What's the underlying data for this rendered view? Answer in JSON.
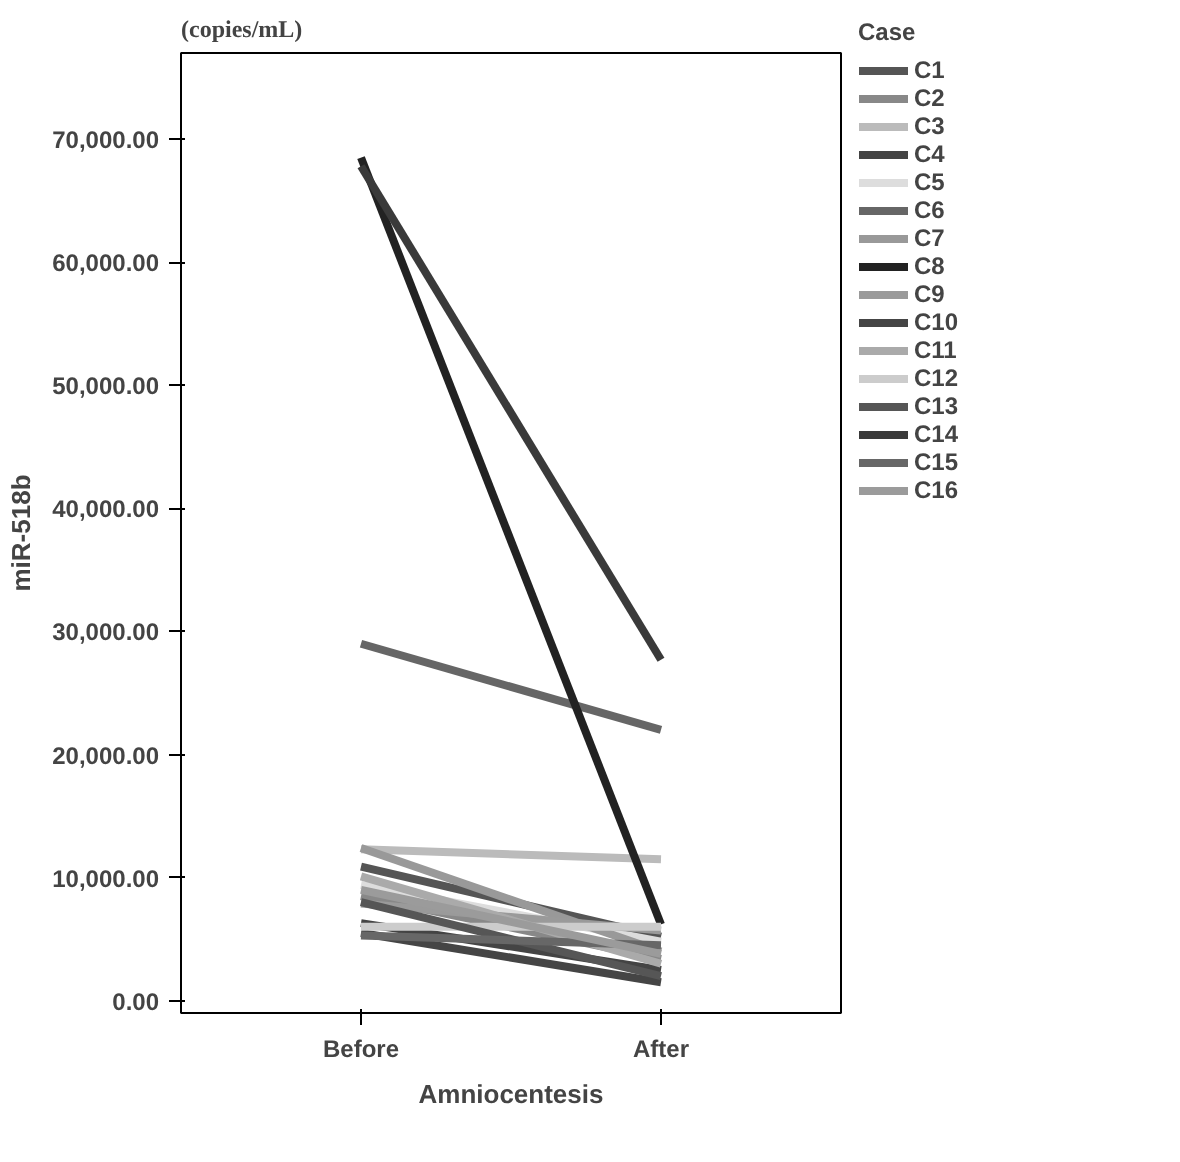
{
  "chart_data": {
    "type": "line",
    "xlabel": "Amniocentesis",
    "ylabel": "miR-518b",
    "legend_title": "Case",
    "legend": "right",
    "grid": false,
    "marker": "none",
    "line_style": "solid",
    "annotations": [
      "(copies/mL)"
    ],
    "categories": [
      "Before",
      "After"
    ],
    "ylim": [
      -1000,
      77000
    ],
    "yticks": [
      {
        "value": 0,
        "label": "0.00"
      },
      {
        "value": 10000,
        "label": "10,000.00"
      },
      {
        "value": 20000,
        "label": "20,000.00"
      },
      {
        "value": 30000,
        "label": "30,000.00"
      },
      {
        "value": 40000,
        "label": "40,000.00"
      },
      {
        "value": 50000,
        "label": "50,000.00"
      },
      {
        "value": 60000,
        "label": "60,000.00"
      },
      {
        "value": 70000,
        "label": "70,000.00"
      }
    ],
    "series": [
      {
        "name": "C1",
        "color": "#555555",
        "values": [
          10900,
          5200
        ]
      },
      {
        "name": "C2",
        "color": "#888888",
        "values": [
          8500,
          3400
        ]
      },
      {
        "name": "C3",
        "color": "#bbbbbb",
        "values": [
          12300,
          11500
        ]
      },
      {
        "name": "C4",
        "color": "#444444",
        "values": [
          6300,
          2500
        ]
      },
      {
        "name": "C5",
        "color": "#dddddd",
        "values": [
          9400,
          4800
        ]
      },
      {
        "name": "C6",
        "color": "#666666",
        "values": [
          29000,
          22000
        ]
      },
      {
        "name": "C7",
        "color": "#999999",
        "values": [
          12400,
          4000
        ]
      },
      {
        "name": "C8",
        "color": "#222222",
        "values": [
          68500,
          6200
        ]
      },
      {
        "name": "C9",
        "color": "#9a9a9a",
        "values": [
          7900,
          5700
        ]
      },
      {
        "name": "C10",
        "color": "#454545",
        "values": [
          5500,
          1500
        ]
      },
      {
        "name": "C11",
        "color": "#aaaaaa",
        "values": [
          10100,
          3000
        ]
      },
      {
        "name": "C12",
        "color": "#cccccc",
        "values": [
          6000,
          6000
        ]
      },
      {
        "name": "C13",
        "color": "#565656",
        "values": [
          8000,
          2000
        ]
      },
      {
        "name": "C14",
        "color": "#3a3a3a",
        "values": [
          67800,
          27700
        ]
      },
      {
        "name": "C15",
        "color": "#676767",
        "values": [
          5300,
          4500
        ]
      },
      {
        "name": "C16",
        "color": "#9b9b9b",
        "values": [
          9000,
          3800
        ]
      }
    ]
  }
}
